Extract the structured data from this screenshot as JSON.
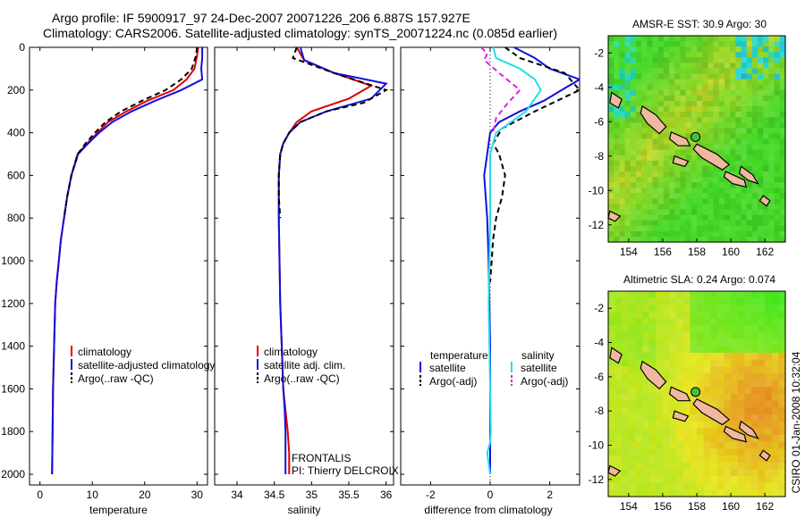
{
  "header": {
    "line1": "Argo profile: IF 5900917_97 24-Dec-2007 20071226_206 6.887S 157.927E",
    "line2": "Climatology: CARS2006. Satellite-adjusted climatology: synTS_20071224.nc (0.085d earlier)"
  },
  "footer": {
    "credit": "CSIRO 01-Jan-2008 10:32:04"
  },
  "colors": {
    "red": "#e00000",
    "blue": "#1010e0",
    "black": "#000000",
    "cyan": "#20e0e8",
    "magenta": "#e020e0",
    "land": "#f0b8a0"
  },
  "chart_data": [
    {
      "type": "line",
      "xlabel": "temperature",
      "ylim": [
        0,
        2050
      ],
      "xlim": [
        -2,
        32
      ],
      "xticks": [
        "0",
        "10",
        "20",
        "30"
      ],
      "yticks": [
        "0",
        "200",
        "400",
        "600",
        "800",
        "1000",
        "1200",
        "1400",
        "1600",
        "1800",
        "2000"
      ],
      "legend": [
        "climatology",
        "satellite-adjusted climatology",
        "Argo(..raw -QC)"
      ],
      "series": [
        {
          "name": "climatology",
          "color": "red",
          "dash": "",
          "x": [
            30.2,
            30.0,
            29.5,
            28.0,
            25.5,
            20.5,
            16.5,
            13.0,
            11.0,
            9.0,
            7.2,
            6.0,
            5.2,
            4.6,
            4.0,
            3.6,
            3.2,
            2.9,
            2.7,
            2.5,
            2.4,
            2.3
          ],
          "y": [
            0,
            40,
            100,
            150,
            200,
            250,
            300,
            350,
            400,
            450,
            500,
            600,
            700,
            800,
            900,
            1000,
            1100,
            1200,
            1400,
            1600,
            1800,
            2000
          ]
        },
        {
          "name": "satellite-adjusted climatology",
          "color": "blue",
          "dash": "",
          "x": [
            31.0,
            31.0,
            30.8,
            31.0,
            27.0,
            22.0,
            17.5,
            13.8,
            11.3,
            9.2,
            7.3,
            6.0,
            5.2,
            4.6,
            4.0,
            3.6,
            3.2,
            2.9,
            2.7,
            2.5,
            2.4,
            2.3
          ],
          "y": [
            0,
            50,
            100,
            150,
            200,
            250,
            300,
            350,
            400,
            450,
            500,
            600,
            700,
            800,
            900,
            1000,
            1100,
            1200,
            1400,
            1600,
            1800,
            2000
          ]
        },
        {
          "name": "Argo(..raw -QC)",
          "color": "black",
          "dash": "6,4",
          "x": [
            30.0,
            29.8,
            29.0,
            27.0,
            24.0,
            19.5,
            15.5,
            12.5,
            10.5,
            8.7,
            7.2,
            6.0,
            5.2,
            4.6
          ],
          "y": [
            0,
            40,
            100,
            150,
            200,
            250,
            300,
            350,
            400,
            450,
            500,
            600,
            700,
            800
          ]
        }
      ]
    },
    {
      "type": "line",
      "xlabel": "salinity",
      "ylim": [
        0,
        2050
      ],
      "xlim": [
        33.7,
        36.1
      ],
      "xticks": [
        "34",
        "34.5",
        "35",
        "35.5",
        "36"
      ],
      "legend": [
        "climatology",
        "satellite adj. clim.",
        "Argo(..raw -QC)"
      ],
      "annotation": [
        "FRONTALIS",
        "PI: Thierry DELCROIX"
      ],
      "series": [
        {
          "name": "climatology",
          "color": "red",
          "dash": "",
          "x": [
            34.8,
            34.9,
            35.3,
            35.8,
            35.5,
            35.0,
            34.8,
            34.7,
            34.62,
            34.58,
            34.56,
            34.56,
            34.57,
            34.58,
            34.6,
            34.62,
            34.65,
            34.68,
            34.7,
            34.7
          ],
          "y": [
            0,
            60,
            120,
            180,
            240,
            300,
            350,
            400,
            450,
            500,
            600,
            800,
            1000,
            1200,
            1400,
            1600,
            1700,
            1800,
            1900,
            2000
          ]
        },
        {
          "name": "satellite adj. clim.",
          "color": "blue",
          "dash": "",
          "x": [
            34.85,
            34.9,
            35.3,
            36.0,
            35.8,
            35.2,
            34.85,
            34.7,
            34.62,
            34.58,
            34.56,
            34.56,
            34.57,
            34.58,
            34.6,
            34.62,
            34.64,
            34.65,
            34.65,
            34.65
          ],
          "y": [
            0,
            60,
            120,
            170,
            240,
            300,
            350,
            400,
            450,
            500,
            600,
            800,
            1000,
            1200,
            1400,
            1600,
            1700,
            1800,
            1900,
            2000
          ]
        },
        {
          "name": "Argo(..raw -QC)",
          "color": "black",
          "dash": "6,4",
          "x": [
            34.8,
            34.75,
            35.3,
            36.0,
            35.7,
            35.2,
            34.85,
            34.7,
            34.62,
            34.58,
            34.56,
            34.56,
            34.58
          ],
          "y": [
            0,
            50,
            120,
            200,
            260,
            300,
            350,
            400,
            450,
            500,
            600,
            700,
            800
          ]
        }
      ]
    },
    {
      "type": "line",
      "xlabel": "difference from climatology",
      "ylim": [
        0,
        2050
      ],
      "xlim": [
        -3.0,
        3.0
      ],
      "xticks": [
        "-2",
        "0",
        "2"
      ],
      "legend_left_title": "temperature",
      "legend_right_title": "salinity",
      "legend_left": [
        "satellite",
        "Argo(-adj)"
      ],
      "legend_right": [
        "satellite",
        "Argo(-adj)"
      ],
      "series": [
        {
          "name": "temperature satellite",
          "color": "blue",
          "dash": "",
          "x": [
            0.8,
            1.5,
            2.0,
            3.0,
            1.8,
            1.0,
            0.3,
            0.0,
            -0.1,
            -0.2,
            -0.15,
            -0.1,
            -0.05,
            0.0,
            0.0,
            0.0
          ],
          "y": [
            0,
            50,
            100,
            150,
            250,
            300,
            350,
            400,
            500,
            600,
            700,
            800,
            1000,
            1400,
            1800,
            2000
          ]
        },
        {
          "name": "temperature Argo(-adj)",
          "color": "black",
          "dash": "6,4",
          "x": [
            0.5,
            1.0,
            2.5,
            3.0,
            1.5,
            0.4,
            0.1,
            0.3,
            0.5,
            0.4,
            0.2,
            0.1,
            0.05,
            0.0
          ],
          "y": [
            0,
            50,
            120,
            200,
            300,
            380,
            450,
            500,
            600,
            700,
            800,
            900,
            1000,
            1100
          ]
        },
        {
          "name": "salinity satellite",
          "color": "cyan",
          "dash": "",
          "x": [
            0.1,
            0.2,
            1.0,
            1.5,
            1.7,
            1.2,
            0.2,
            0.0,
            0.0,
            -0.05,
            0.0,
            0.02,
            0.0,
            -0.1,
            0.0
          ],
          "y": [
            0,
            50,
            100,
            150,
            200,
            300,
            400,
            500,
            800,
            1200,
            1600,
            1800,
            1850,
            1900,
            2000
          ]
        },
        {
          "name": "salinity Argo(-adj)",
          "color": "magenta",
          "dash": "6,4",
          "x": [
            -0.3,
            -0.1,
            -0.2,
            0.3,
            1.0,
            0.6,
            0.2,
            0.1
          ],
          "y": [
            0,
            30,
            60,
            120,
            200,
            260,
            330,
            400
          ]
        }
      ]
    },
    {
      "type": "heatmap",
      "title": "AMSR-E SST: 30.9 Argo: 30",
      "xticks": [
        "154",
        "156",
        "158",
        "160",
        "162"
      ],
      "yticks": [
        "-2",
        "-4",
        "-6",
        "-8",
        "-10",
        "-12"
      ],
      "xlim": [
        152.8,
        163.2
      ],
      "ylim": [
        -13.0,
        -1.0
      ],
      "argo_point": [
        157.927,
        -6.887
      ],
      "palette": "green"
    },
    {
      "type": "heatmap",
      "title": "Altimetric SLA: 0.24 Argo: 0.074",
      "xticks": [
        "154",
        "156",
        "158",
        "160",
        "162"
      ],
      "yticks": [
        "-2",
        "-4",
        "-6",
        "-8",
        "-10",
        "-12"
      ],
      "xlim": [
        152.8,
        163.2
      ],
      "ylim": [
        -13.0,
        -1.0
      ],
      "argo_point": [
        157.927,
        -6.887
      ],
      "palette": "orange"
    }
  ]
}
